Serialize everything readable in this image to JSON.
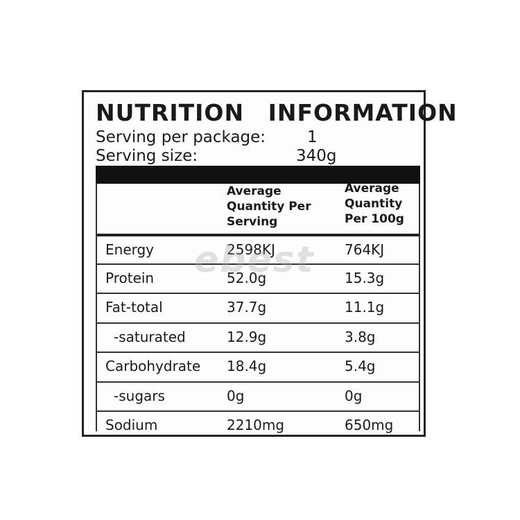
{
  "title": "NUTRITION INFORMATION",
  "serving": [
    [
      "Serving per package:",
      "1"
    ],
    [
      "Serving size:",
      "340g"
    ]
  ],
  "table": {
    "header": [
      "Average Quantity Per Serving",
      "Average Quantity Per 100g"
    ],
    "rows": [
      [
        "Energy",
        "2598KJ",
        "764KJ"
      ],
      [
        "Protein",
        "52.0g",
        "15.3g"
      ],
      [
        "Fat-total",
        "37.7g",
        "11.1g"
      ],
      [
        "-saturated",
        "12.9g",
        "3.8g"
      ],
      [
        "Carbohydrate",
        "18.4g",
        "5.4g"
      ],
      [
        "-sugars",
        "0g",
        "0g"
      ],
      [
        "Sodium",
        "2210mg",
        "650mg"
      ]
    ]
  },
  "watermark": "ebest"
}
